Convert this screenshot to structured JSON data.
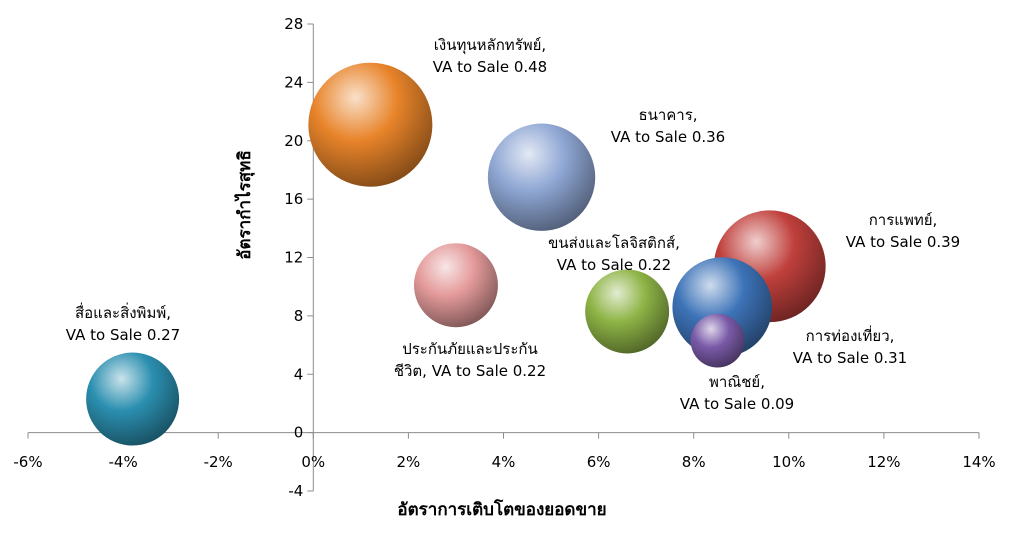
{
  "chart_data": {
    "type": "bubble",
    "xlabel": "อัตราการเติบโตของยอดขาย",
    "ylabel": "อัตรากำไรสุทธิ",
    "xlim": [
      -0.06,
      0.14
    ],
    "ylim": [
      -4,
      28
    ],
    "x_ticks": [
      -0.06,
      -0.04,
      -0.02,
      0,
      0.02,
      0.04,
      0.06,
      0.08,
      0.1,
      0.12,
      0.14
    ],
    "x_tick_labels": [
      "-6%",
      "-4%",
      "-2%",
      "0%",
      "2%",
      "4%",
      "6%",
      "8%",
      "10%",
      "12%",
      "14%"
    ],
    "y_ticks": [
      -4,
      0,
      4,
      8,
      12,
      16,
      20,
      24,
      28
    ],
    "y_tick_labels": [
      "-4",
      "0",
      "4",
      "8",
      "12",
      "16",
      "20",
      "24",
      "28"
    ],
    "grid": false,
    "legend": "none",
    "series": [
      {
        "name": "เงินทุนหลักทรัพย์",
        "x": 0.012,
        "y": 21.1,
        "size": 0.48,
        "color": "#e8842a",
        "label_lines": [
          "เงินทุนหลักทรัพย์,",
          "VA to Sale 0.48"
        ]
      },
      {
        "name": "ธนาคาร",
        "x": 0.048,
        "y": 17.5,
        "size": 0.36,
        "color": "#8fa7d4",
        "label_lines": [
          "ธนาคาร,",
          "VA to Sale  0.36"
        ]
      },
      {
        "name": "การแพทย์",
        "x": 0.096,
        "y": 11.4,
        "size": 0.39,
        "color": "#c0403c",
        "label_lines": [
          "การแพทย์,",
          "VA to Sale  0.39"
        ]
      },
      {
        "name": "การท่องเที่ยว",
        "x": 0.086,
        "y": 8.6,
        "size": 0.31,
        "color": "#3d73b8",
        "label_lines": [
          "การท่องเที่ยว,",
          "VA to Sale  0.31"
        ]
      },
      {
        "name": "ขนส่งและโลจิสติกส์",
        "x": 0.066,
        "y": 8.3,
        "size": 0.22,
        "color": "#8eb446",
        "label_lines": [
          "ขนส่งและโลจิสติกส์,",
          "VA to Sale  0.22"
        ]
      },
      {
        "name": "ประกันภัยและประกันชีวิต",
        "x": 0.03,
        "y": 10.1,
        "size": 0.22,
        "color": "#e49a9a",
        "label_lines": [
          "ประกันภัยและประกัน",
          "ชีวิต, VA to Sale 0.22"
        ]
      },
      {
        "name": "พาณิชย์",
        "x": 0.085,
        "y": 6.3,
        "size": 0.09,
        "color": "#7a5aa8",
        "label_lines": [
          "พาณิชย์,",
          "VA to Sale  0.09"
        ]
      },
      {
        "name": "สื่อและสิ่งพิมพ์",
        "x": -0.038,
        "y": 2.3,
        "size": 0.27,
        "color": "#2b8fb0",
        "label_lines": [
          "สื่อและสิ่งพิมพ์,",
          "VA to Sale  0.27"
        ]
      }
    ]
  }
}
